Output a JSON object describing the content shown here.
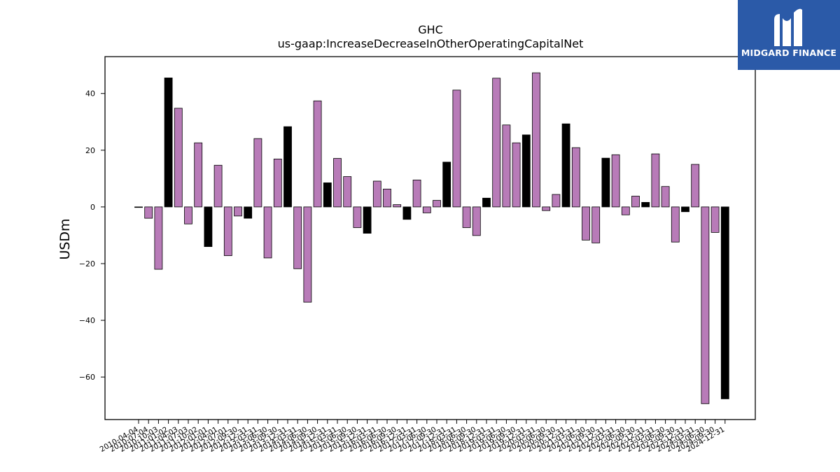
{
  "colors": {
    "purple": "#b87bb8",
    "black": "#000000",
    "logo_bg": "#2b5aa8"
  },
  "logo": {
    "text": "MIDGARD FINANCE",
    "icon": "midgard-logo-icon"
  },
  "chart_data": {
    "type": "bar",
    "title": "GHC",
    "subtitle": "us-gaap:IncreaseDecreaseInOtherOperatingCapitalNet",
    "xlabel": "",
    "ylabel": "USDm",
    "ylim": [
      -75,
      53
    ],
    "yticks": [
      -60,
      -40,
      -20,
      0,
      20,
      40
    ],
    "grid": false,
    "legend": "none",
    "categories": [
      "2010-04-04",
      "2010-07-04",
      "2010-10-03",
      "2011-01-02",
      "2011-04-03",
      "2011-07-03",
      "2011-10-02",
      "2012-01-01",
      "2012-04-01",
      "2012-07-01",
      "2012-09-30",
      "2012-12-31",
      "2013-03-31",
      "2013-06-30",
      "2013-09-30",
      "2013-12-31",
      "2014-03-31",
      "2014-06-30",
      "2014-09-30",
      "2014-12-31",
      "2015-03-31",
      "2015-06-30",
      "2015-09-30",
      "2015-12-31",
      "2016-03-31",
      "2016-06-30",
      "2016-09-30",
      "2016-12-31",
      "2017-03-31",
      "2017-06-30",
      "2017-09-30",
      "2017-12-31",
      "2018-03-31",
      "2018-06-30",
      "2018-09-30",
      "2018-12-31",
      "2019-03-31",
      "2019-06-30",
      "2019-09-30",
      "2019-12-31",
      "2020-03-31",
      "2020-06-30",
      "2020-09-30",
      "2020-12-31",
      "2021-03-31",
      "2021-06-30",
      "2021-09-30",
      "2021-12-31",
      "2022-03-31",
      "2022-06-30",
      "2022-09-30",
      "2022-12-31",
      "2023-03-31",
      "2023-06-30",
      "2023-09-30",
      "2023-12-31",
      "2024-03-31",
      "2024-06-30",
      "2024-09-30",
      "2024-12-31"
    ],
    "values": [
      0,
      -4,
      -22,
      45.5,
      34.8,
      -6,
      22.6,
      -14,
      14.7,
      -17.2,
      -3.2,
      -4,
      24.1,
      -18,
      16.9,
      28.3,
      -21.8,
      -33.6,
      37.4,
      8.5,
      17.1,
      10.7,
      -7.3,
      -9.3,
      9.1,
      6.3,
      0.8,
      -4.4,
      9.5,
      -2.1,
      2.3,
      15.8,
      41.2,
      -7.3,
      -10.1,
      3.1,
      45.4,
      28.9,
      22.6,
      25.4,
      47.3,
      -1.3,
      4.4,
      29.3,
      20.9,
      -11.7,
      -12.7,
      17.2,
      18.4,
      -2.8,
      3.8,
      1.6,
      18.7,
      7.2,
      -12.4,
      -1.7,
      15,
      -69.4,
      -9,
      -67.7
    ],
    "bar_colors": [
      "purple",
      "purple",
      "purple",
      "black",
      "purple",
      "purple",
      "purple",
      "black",
      "purple",
      "purple",
      "purple",
      "black",
      "purple",
      "purple",
      "purple",
      "black",
      "purple",
      "purple",
      "purple",
      "black",
      "purple",
      "purple",
      "purple",
      "black",
      "purple",
      "purple",
      "purple",
      "black",
      "purple",
      "purple",
      "purple",
      "black",
      "purple",
      "purple",
      "purple",
      "black",
      "purple",
      "purple",
      "purple",
      "black",
      "purple",
      "purple",
      "purple",
      "black",
      "purple",
      "purple",
      "purple",
      "black",
      "purple",
      "purple",
      "purple",
      "black",
      "purple",
      "purple",
      "purple",
      "black",
      "purple",
      "purple",
      "purple",
      "black"
    ],
    "visible_tick_labels": [
      "2010-04-04",
      "2010-07-04",
      "2010-10-03",
      "2011-01-02",
      "2011-04-03",
      "2011-07-03",
      "2011-10-02",
      "2012-01-01",
      "2012-04-01",
      "2012-07-01",
      "2012-09-30",
      "2012-12-31",
      "2013-03-31",
      "2013-06-30",
      "2013-09-30",
      "2013-12-31",
      "2014-03-31",
      "2014-06-30",
      "2014-09-30",
      "2014-12-31",
      "2015-03-31",
      "2015-06-30",
      "2015-09-30",
      "2015-12-31",
      "2016-03-31",
      "2016-06-30",
      "2016-09-30",
      "2016-12-31",
      "2017-03-31",
      "2017-06-30",
      "2017-09-30",
      "2017-12-31",
      "2018-03-31",
      "2018-06-30",
      "2018-09-30",
      "2018-12-31",
      "2019-03-31",
      "2019-06-30",
      "2019-09-30",
      "2019-12-31",
      "2020-03-31",
      "2020-06-30",
      "2020-09-30",
      "2020-12-31",
      "2021-03-31",
      "2021-06-30",
      "2021-09-30",
      "2021-12-31",
      "2022-03-31",
      "2022-06-30",
      "2022-09-30",
      "2022-12-31",
      "2023-03-31",
      "2023-06-30",
      "2023-09-30",
      "2023-12-31",
      "2024-03-31",
      "2024-06-30",
      "2024-09-30",
      "2024-12-31"
    ]
  }
}
